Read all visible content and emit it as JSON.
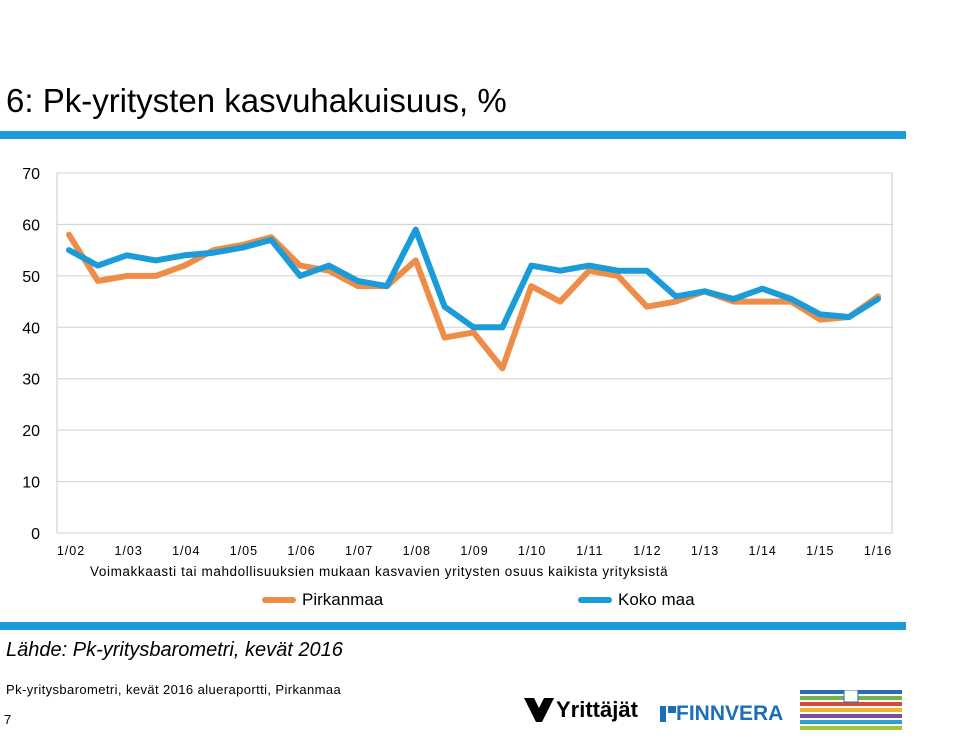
{
  "slide": {
    "title": "6: Pk-yritysten kasvuhakuisuus, %",
    "source": "Lähde: Pk-yritysbarometri, kevät 2016",
    "footer": "Pk-yritysbarometri, kevät 2016 alueraportti, Pirkanmaa",
    "page_number": "7",
    "accent_color": "#1b9bd7"
  },
  "logos": {
    "yrittajat": "Yrittäjät",
    "finnvera": "FINNVERA",
    "ministry": "TYÖ- JA ELINKEINOMINISTERIÖ ARBETS- OCH NÄRINGSMINISTERIET MINISTRY OF EMPLOYMENT AND THE ECONOMY"
  },
  "chart_data": {
    "type": "line",
    "title": "",
    "xlabel": "Voimakkaasti tai mahdollisuuksien mukaan kasvavien yritysten osuus kaikista yrityksistä",
    "ylabel": "",
    "ylim": [
      0,
      70
    ],
    "yticks": [
      0,
      10,
      20,
      30,
      40,
      50,
      60,
      70
    ],
    "grid": true,
    "legend_position": "bottom",
    "x_tick_labels": [
      "1/02",
      "1/03",
      "1/04",
      "1/05",
      "1/06",
      "1/07",
      "1/08",
      "1/09",
      "1/10",
      "1/11",
      "1/12",
      "1/13",
      "1/14",
      "1/15",
      "1/16"
    ],
    "series": [
      {
        "name": "Pirkanmaa",
        "color": "#ee8d47",
        "values": [
          58,
          49,
          50,
          50,
          52,
          55,
          56,
          57.5,
          52,
          51,
          48,
          48,
          53,
          38,
          39,
          32,
          48,
          45,
          51,
          50,
          44,
          45,
          47,
          45,
          45,
          45,
          41.5,
          42,
          46
        ]
      },
      {
        "name": "Koko maa",
        "color": "#1b9bd7",
        "values": [
          55,
          52,
          54,
          53,
          54,
          54.5,
          55.5,
          57,
          50,
          52,
          49,
          48,
          59,
          44,
          40,
          40,
          52,
          51,
          52,
          51,
          51,
          46,
          47,
          45.5,
          47.5,
          45.5,
          42.5,
          42,
          45.5
        ]
      }
    ]
  }
}
